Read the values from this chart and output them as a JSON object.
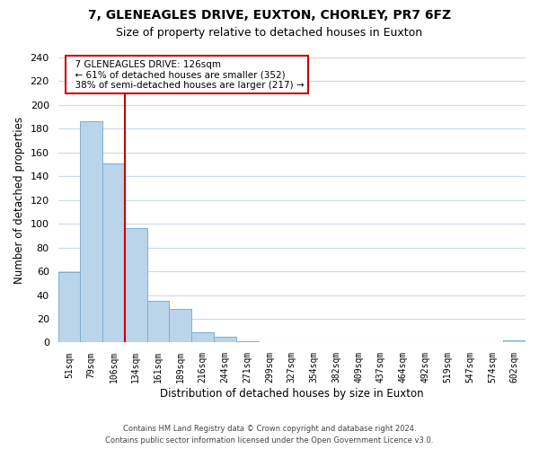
{
  "title": "7, GLENEAGLES DRIVE, EUXTON, CHORLEY, PR7 6FZ",
  "subtitle": "Size of property relative to detached houses in Euxton",
  "xlabel": "Distribution of detached houses by size in Euxton",
  "ylabel": "Number of detached properties",
  "categories": [
    "51sqm",
    "79sqm",
    "106sqm",
    "134sqm",
    "161sqm",
    "189sqm",
    "216sqm",
    "244sqm",
    "271sqm",
    "299sqm",
    "327sqm",
    "354sqm",
    "382sqm",
    "409sqm",
    "437sqm",
    "464sqm",
    "492sqm",
    "519sqm",
    "547sqm",
    "574sqm",
    "602sqm"
  ],
  "values": [
    59,
    186,
    151,
    96,
    35,
    28,
    9,
    5,
    1,
    0,
    0,
    0,
    0,
    0,
    0,
    0,
    0,
    0,
    0,
    0,
    2
  ],
  "bar_color": "#bad4ea",
  "bar_edge_color": "#7aafd4",
  "vline_color": "#cc0000",
  "ylim": [
    0,
    240
  ],
  "yticks": [
    0,
    20,
    40,
    60,
    80,
    100,
    120,
    140,
    160,
    180,
    200,
    220,
    240
  ],
  "annotation_title": "7 GLENEAGLES DRIVE: 126sqm",
  "annotation_line1": "← 61% of detached houses are smaller (352)",
  "annotation_line2": "38% of semi-detached houses are larger (217) →",
  "annotation_box_color": "#ffffff",
  "annotation_box_edge": "#cc0000",
  "footer1": "Contains HM Land Registry data © Crown copyright and database right 2024.",
  "footer2": "Contains public sector information licensed under the Open Government Licence v3.0.",
  "background_color": "#ffffff",
  "grid_color": "#c8d8ec"
}
